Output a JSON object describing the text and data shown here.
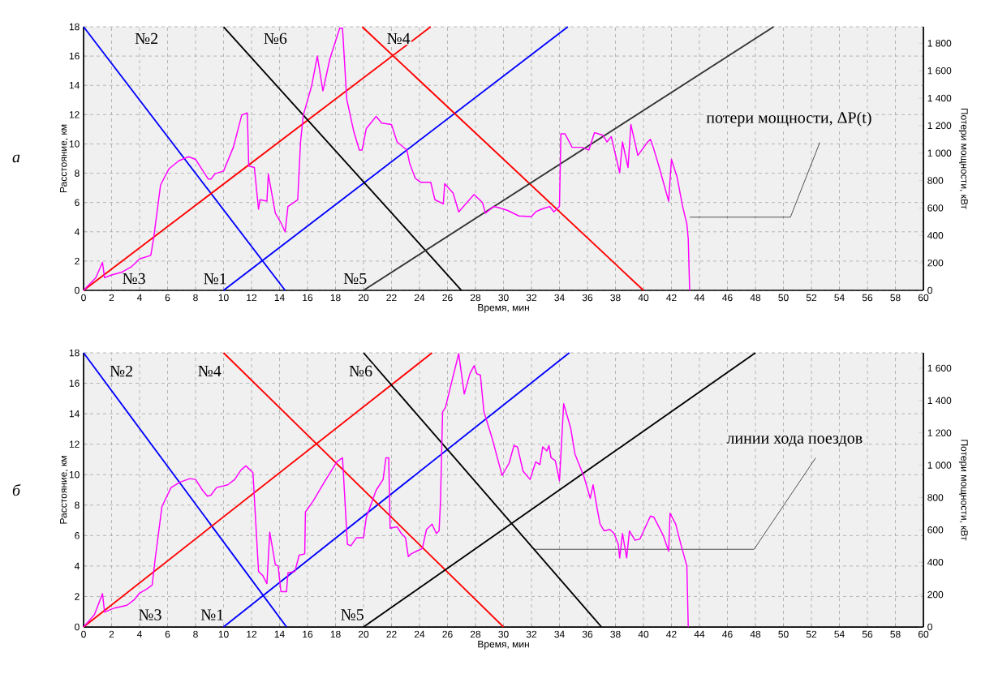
{
  "chart_data": [
    {
      "type": "line",
      "title": "а",
      "xlabel": "Время, мин",
      "ylabel": "Расстояние, км",
      "y2label": "Потери мощности, кВт",
      "xlim": [
        0,
        60
      ],
      "xticks": [
        0,
        2,
        4,
        6,
        8,
        10,
        12,
        14,
        16,
        18,
        20,
        22,
        24,
        26,
        28,
        30,
        32,
        34,
        36,
        38,
        40,
        42,
        44,
        46,
        48,
        50,
        52,
        54,
        56,
        58,
        60
      ],
      "ylim": [
        0,
        18
      ],
      "yticks": [
        0,
        2,
        4,
        6,
        8,
        10,
        12,
        14,
        16,
        18
      ],
      "y2lim": [
        0,
        1920
      ],
      "y2ticks": [
        0,
        200,
        400,
        600,
        800,
        {
          "value": 1000,
          "label": "1 000"
        },
        {
          "value": 1200,
          "label": "1 200"
        },
        {
          "value": 1400,
          "label": "1 400"
        },
        {
          "value": 1600,
          "label": "1 600"
        },
        {
          "value": 1800,
          "label": "1 800"
        }
      ],
      "grid": true,
      "series": [
        {
          "name": "№2",
          "color": "#0000ff",
          "x": [
            0,
            14.4
          ],
          "values": [
            18,
            0
          ]
        },
        {
          "name": "№3",
          "color": "#ff0000",
          "x": [
            0,
            24.8
          ],
          "values": [
            0,
            18
          ]
        },
        {
          "name": "№1",
          "color": "#0000ff",
          "x": [
            10,
            34.6
          ],
          "values": [
            0,
            18
          ]
        },
        {
          "name": "№6",
          "color": "#000000",
          "x": [
            10,
            27
          ],
          "values": [
            18,
            0
          ]
        },
        {
          "name": "№4",
          "color": "#ff0000",
          "x": [
            19.9,
            40
          ],
          "values": [
            18,
            0
          ]
        },
        {
          "name": "№5",
          "color": "#333333",
          "x": [
            20,
            49.3
          ],
          "values": [
            0,
            18
          ]
        },
        {
          "color": "#ff00ff",
          "axis": "y2",
          "x": [
            0,
            0.87,
            1.35,
            1.5,
            2.0,
            2.7,
            3.4,
            4.0,
            4.8,
            5.0,
            5.5,
            6.1,
            6.8,
            7.5,
            8.0,
            8.5,
            8.9,
            9.1,
            9.4,
            10.0,
            10.7,
            11.3,
            11.7,
            11.8,
            12.2,
            12.5,
            12.6,
            13.1,
            13.2,
            13.7,
            14.1,
            14.4,
            14.6,
            15.3,
            15.5,
            15.7,
            16.3,
            16.7,
            17.1,
            17.6,
            18.3,
            18.5,
            18.8,
            19.3,
            19.7,
            19.9,
            20.2,
            20.9,
            21.3,
            22.0,
            22.4,
            23.1,
            23.3,
            23.7,
            24.1,
            24.8,
            25.1,
            25.7,
            25.8,
            26.4,
            26.8,
            27.9,
            28.5,
            28.7,
            29.3,
            29.7,
            30.3,
            31.1,
            32.0,
            32.3,
            32.7,
            33.3,
            33.6,
            34.0,
            34.1,
            34.4,
            34.9,
            35.6,
            36.1,
            36.5,
            37.1,
            37.4,
            37.7,
            38.3,
            38.5,
            38.9,
            39.1,
            39.6,
            40.3,
            40.5,
            40.7,
            41.1,
            41.8,
            42.0,
            42.4,
            42.8,
            43.1,
            43.2,
            43.3
          ],
          "values": [
            0,
            92,
            204,
            92,
            112,
            131,
            170,
            229,
            255,
            376,
            768,
            885,
            944,
            973,
            954,
            875,
            811,
            811,
            850,
            869,
            1042,
            1277,
            1292,
            905,
            895,
            591,
            660,
            650,
            846,
            562,
            493,
            425,
            611,
            660,
            1081,
            1277,
            1492,
            1707,
            1453,
            1688,
            1910,
            1910,
            1394,
            1159,
            1022,
            1022,
            1179,
            1267,
            1218,
            1208,
            1081,
            1022,
            924,
            816,
            787,
            787,
            660,
            630,
            777,
            709,
            572,
            699,
            640,
            562,
            611,
            601,
            582,
            542,
            537,
            572,
            591,
            611,
            572,
            611,
            1140,
            1140,
            1042,
            1042,
            1022,
            1149,
            1130,
            1081,
            1120,
            856,
            1081,
            895,
            1208,
            983,
            1081,
            1100,
            1042,
            905,
            650,
            954,
            826,
            611,
            484,
            376,
            0
          ]
        }
      ],
      "annotations": [
        {
          "text": "потери мощности, ΔP(t)",
          "x": 43.3,
          "y": 5
        }
      ]
    },
    {
      "type": "line",
      "title": "б",
      "xlabel": "Время, мин",
      "ylabel": "Расстояние, км",
      "y2label": "Потери мощности, кВт",
      "xlim": [
        0,
        60
      ],
      "xticks": [
        0,
        2,
        4,
        6,
        8,
        10,
        12,
        14,
        16,
        18,
        20,
        22,
        24,
        26,
        28,
        30,
        32,
        34,
        36,
        38,
        40,
        42,
        44,
        46,
        48,
        50,
        52,
        54,
        56,
        58,
        60
      ],
      "ylim": [
        0,
        18
      ],
      "yticks": [
        0,
        2,
        4,
        6,
        8,
        10,
        12,
        14,
        16,
        18
      ],
      "y2lim": [
        0,
        1695
      ],
      "y2ticks": [
        0,
        200,
        400,
        600,
        800,
        {
          "value": 1000,
          "label": "1 000"
        },
        {
          "value": 1200,
          "label": "1 200"
        },
        {
          "value": 1400,
          "label": "1 400"
        },
        {
          "value": 1600,
          "label": "1 600"
        }
      ],
      "grid": true,
      "series": [
        {
          "name": "№2",
          "color": "#0000ff",
          "x": [
            0,
            14.5
          ],
          "values": [
            18,
            0
          ]
        },
        {
          "name": "№3",
          "color": "#ff0000",
          "x": [
            0,
            24.9
          ],
          "values": [
            0,
            18
          ]
        },
        {
          "name": "№1",
          "color": "#0000ff",
          "x": [
            10,
            34.7
          ],
          "values": [
            0,
            18
          ]
        },
        {
          "name": "№4",
          "color": "#ff0000",
          "x": [
            10,
            30
          ],
          "values": [
            18,
            0
          ]
        },
        {
          "name": "№6",
          "color": "#000000",
          "x": [
            20,
            37
          ],
          "values": [
            18,
            0
          ]
        },
        {
          "name": "№5",
          "color": "#000000",
          "x": [
            20,
            48
          ],
          "values": [
            0,
            18
          ]
        },
        {
          "color": "#ff00ff",
          "axis": "y2",
          "x": [
            0,
            0.77,
            1.35,
            1.5,
            2.2,
            3.1,
            3.6,
            4.0,
            4.5,
            4.9,
            5.1,
            5.6,
            6.25,
            6.9,
            7.6,
            8.0,
            8.5,
            8.85,
            9.1,
            9.5,
            10.3,
            10.8,
            11.25,
            11.6,
            12.1,
            12.5,
            12.8,
            13.1,
            13.3,
            13.7,
            13.9,
            14.1,
            14.5,
            14.6,
            15.1,
            15.4,
            15.8,
            15.85,
            16.4,
            17.2,
            18.1,
            18.5,
            18.85,
            19.1,
            19.5,
            20.0,
            20.2,
            20.9,
            21.4,
            21.6,
            21.8,
            21.9,
            22.4,
            22.7,
            23.0,
            23.2,
            23.4,
            23.8,
            24.2,
            24.5,
            24.9,
            25.2,
            25.4,
            25.5,
            25.65,
            25.85,
            26.3,
            26.8,
            27.2,
            27.6,
            27.9,
            28.1,
            28.35,
            28.6,
            29.2,
            29.9,
            30.4,
            30.75,
            31.0,
            31.4,
            31.9,
            32.3,
            32.6,
            32.8,
            33.1,
            33.25,
            33.4,
            33.7,
            34.0,
            34.3,
            34.8,
            35.1,
            35.75,
            36.2,
            36.4,
            36.7,
            36.9,
            37.2,
            37.6,
            37.9,
            38.2,
            38.3,
            38.5,
            38.8,
            39.0,
            39.4,
            39.75,
            40.5,
            40.75,
            41.4,
            41.8,
            41.9,
            42.3,
            42.7,
            43.1,
            43.2
          ],
          "values": [
            0,
            75,
            206,
            92,
            117,
            134,
            167,
            209,
            234,
            259,
            410,
            745,
            862,
            896,
            917,
            912,
            845,
            809,
            815,
            862,
            879,
            912,
            971,
            996,
            954,
            343,
            318,
            268,
            586,
            385,
            377,
            218,
            218,
            335,
            343,
            444,
            452,
            711,
            778,
            896,
            1021,
            1046,
            511,
            502,
            552,
            552,
            678,
            845,
            912,
            1046,
            1046,
            611,
            619,
            578,
            552,
            435,
            452,
            469,
            485,
            603,
            636,
            578,
            594,
            778,
            1331,
            1356,
            1515,
            1690,
            1440,
            1565,
            1615,
            1565,
            1557,
            1331,
            1163,
            937,
            1013,
            1122,
            1113,
            963,
            912,
            1021,
            1004,
            1113,
            1088,
            1122,
            1046,
            1029,
            904,
            1381,
            1230,
            1071,
            929,
            795,
            879,
            728,
            636,
            594,
            603,
            578,
            511,
            427,
            578,
            427,
            594,
            536,
            544,
            686,
            678,
            569,
            469,
            703,
            636,
            502,
            377,
            0
          ]
        }
      ],
      "annotations": [
        {
          "text": "линии хода поездов",
          "x": 32.2,
          "y": 5.1
        }
      ]
    }
  ]
}
